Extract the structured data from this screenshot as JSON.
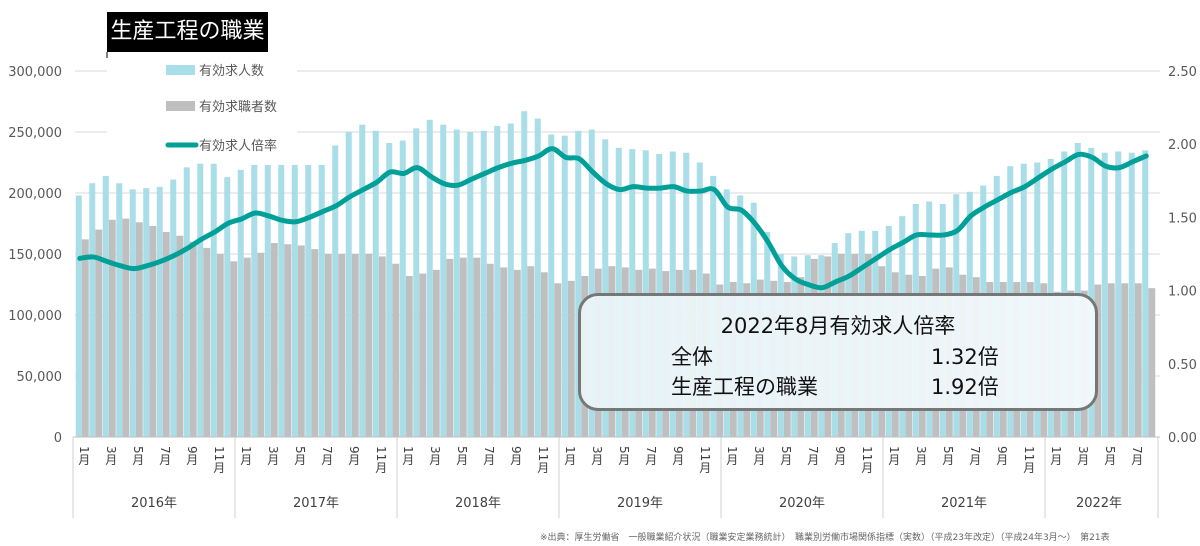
{
  "title": "生産工程の職業",
  "annotation": {
    "heading": "2022年8月有効求人倍率",
    "rows": [
      {
        "label": "全体",
        "value": "1.32倍"
      },
      {
        "label": "生産工程の職業",
        "value": "1.92倍"
      }
    ]
  },
  "footer": "※出典：厚生労働省　一般職業紹介状況（職業安定業務統計）　職業別労働市場関係指標（実数）（平成23年改定）（平成24年3月～）　第21表",
  "colors": {
    "openings": "#a9dde8",
    "seekers": "#bfbfbf",
    "ratio": "#00a098"
  },
  "chart_data": {
    "type": "bar+line",
    "legend": [
      "有効求人数",
      "有効求職者数",
      "有効求人倍率"
    ],
    "legend_position": "top-left",
    "grid": true,
    "y_left": {
      "ylim": [
        0,
        300000
      ],
      "ticks": [
        "0",
        "50,000",
        "100,000",
        "150,000",
        "200,000",
        "250,000",
        "300,000"
      ]
    },
    "y_right": {
      "ylim": [
        0,
        2.5
      ],
      "ticks": [
        "0.00",
        "0.50",
        "1.00",
        "1.50",
        "2.00",
        "2.50"
      ]
    },
    "years": [
      "2016年",
      "2017年",
      "2018年",
      "2019年",
      "2020年",
      "2021年",
      "2022年"
    ],
    "month_labels": [
      "1月",
      "3月",
      "5月",
      "7月",
      "9月",
      "11月"
    ],
    "months_in_last_year": 8,
    "series": [
      {
        "name": "有効求人数",
        "type": "bar",
        "axis": "left",
        "values": [
          198000,
          208000,
          214000,
          208000,
          203000,
          204000,
          205000,
          211000,
          221000,
          224000,
          224000,
          213000,
          219000,
          223000,
          223000,
          223000,
          223000,
          223000,
          223000,
          239000,
          250000,
          256000,
          251000,
          241000,
          243000,
          253000,
          260000,
          256000,
          252000,
          250000,
          251000,
          255000,
          257000,
          267000,
          261000,
          248000,
          247000,
          251000,
          252000,
          244000,
          237000,
          236000,
          235000,
          232000,
          234000,
          233000,
          225000,
          214000,
          203000,
          198000,
          192000,
          168000,
          150000,
          148000,
          149000,
          149000,
          159000,
          167000,
          169000,
          169000,
          173000,
          181000,
          191000,
          193000,
          191000,
          199000,
          201000,
          206000,
          214000,
          222000,
          224000,
          225000,
          228000,
          234000,
          241000,
          237000,
          233000,
          234000,
          233000,
          235000
        ]
      },
      {
        "name": "有効求職者数",
        "type": "bar",
        "axis": "left",
        "values": [
          162000,
          170000,
          178000,
          179000,
          176000,
          173000,
          168000,
          165000,
          160000,
          155000,
          150000,
          144000,
          147000,
          151000,
          159000,
          158000,
          157000,
          154000,
          150000,
          150000,
          150000,
          150000,
          148000,
          142000,
          132000,
          134000,
          137000,
          146000,
          147000,
          147000,
          142000,
          139000,
          137000,
          140000,
          135000,
          126000,
          128000,
          132000,
          138000,
          140000,
          139000,
          137000,
          138000,
          136000,
          137000,
          137000,
          134000,
          125000,
          127000,
          126000,
          129000,
          128000,
          127000,
          131000,
          146000,
          148000,
          150000,
          150000,
          150000,
          140000,
          135000,
          133000,
          132000,
          138000,
          139000,
          133000,
          131000,
          127000,
          127000,
          127000,
          127000,
          126000,
          119000,
          120000,
          120000,
          125000,
          126000,
          126000,
          126000,
          122000
        ]
      },
      {
        "name": "有効求人倍率",
        "type": "line",
        "axis": "right",
        "values": [
          1.22,
          1.23,
          1.2,
          1.17,
          1.15,
          1.17,
          1.2,
          1.24,
          1.29,
          1.35,
          1.4,
          1.46,
          1.49,
          1.53,
          1.51,
          1.48,
          1.47,
          1.5,
          1.54,
          1.58,
          1.64,
          1.69,
          1.74,
          1.81,
          1.8,
          1.84,
          1.78,
          1.73,
          1.72,
          1.76,
          1.8,
          1.84,
          1.87,
          1.89,
          1.92,
          1.97,
          1.91,
          1.9,
          1.81,
          1.73,
          1.69,
          1.71,
          1.7,
          1.7,
          1.71,
          1.68,
          1.68,
          1.69,
          1.57,
          1.55,
          1.46,
          1.33,
          1.17,
          1.08,
          1.04,
          1.02,
          1.06,
          1.1,
          1.16,
          1.22,
          1.28,
          1.33,
          1.38,
          1.38,
          1.38,
          1.41,
          1.51,
          1.57,
          1.62,
          1.67,
          1.71,
          1.77,
          1.83,
          1.88,
          1.93,
          1.91,
          1.85,
          1.84,
          1.88,
          1.92
        ]
      }
    ]
  }
}
